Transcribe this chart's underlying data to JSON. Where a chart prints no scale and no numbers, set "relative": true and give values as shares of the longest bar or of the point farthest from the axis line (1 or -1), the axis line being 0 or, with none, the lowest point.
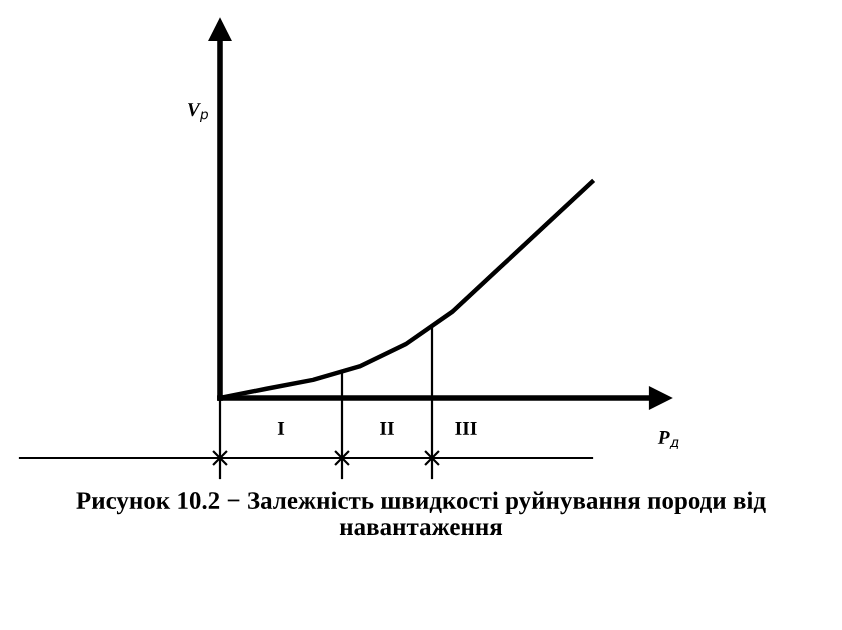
{
  "chart_data": {
    "type": "line",
    "relative": true,
    "xlabel": "P$_{д}$",
    "ylabel": "V$_{р}$",
    "categories": [
      null,
      null,
      null,
      null,
      null,
      null,
      null,
      null,
      null
    ],
    "series": [
      {
        "color": "#000000",
        "values": [
          0,
          0.043,
          0.084,
          0.146,
          0.25,
          0.4,
          0.6,
          0.8,
          1.0
        ]
      }
    ],
    "annotations": [
      "I",
      "II",
      "III",
      "Рисунок 10.2 − Залежність швидкості руйнування породи від навантаження"
    ],
    "grid": false,
    "marker": "none",
    "line_style": "solid"
  }
}
